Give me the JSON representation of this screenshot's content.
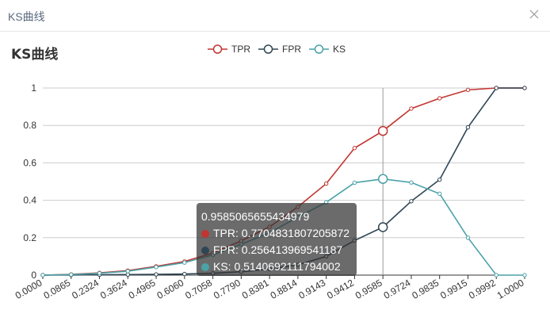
{
  "window": {
    "title": "KS曲线",
    "close_icon": "close-icon"
  },
  "chart_data": {
    "type": "line",
    "title": "KS曲线",
    "x": [
      "0.0000",
      "0.0865",
      "0.2324",
      "0.3624",
      "0.4965",
      "0.6060",
      "0.7058",
      "0.7790",
      "0.8381",
      "0.8814",
      "0.9143",
      "0.9412",
      "0.9585",
      "0.9724",
      "0.9835",
      "0.9915",
      "0.9992",
      "1.0000"
    ],
    "ylim": [
      0,
      1
    ],
    "yticks": [
      "0",
      "0.2",
      "0.4",
      "0.6",
      "0.8",
      "1"
    ],
    "legend_position": "top-center",
    "grid": true,
    "series": [
      {
        "name": "TPR",
        "color": "#c23531",
        "values": [
          0,
          0.004,
          0.012,
          0.024,
          0.047,
          0.073,
          0.118,
          0.183,
          0.258,
          0.365,
          0.489,
          0.679,
          0.7705,
          0.89,
          0.945,
          0.99,
          1.0,
          1.0
        ]
      },
      {
        "name": "FPR",
        "color": "#2f4554",
        "values": [
          0,
          0.001,
          0.002,
          0.003,
          0.004,
          0.006,
          0.01,
          0.018,
          0.032,
          0.055,
          0.1,
          0.185,
          0.2564,
          0.395,
          0.51,
          0.79,
          1.0,
          1.0
        ]
      },
      {
        "name": "KS",
        "color": "#4ba2a8",
        "values": [
          0,
          0.003,
          0.01,
          0.021,
          0.043,
          0.067,
          0.108,
          0.165,
          0.226,
          0.31,
          0.389,
          0.494,
          0.5141,
          0.495,
          0.435,
          0.2,
          0,
          0
        ]
      }
    ],
    "highlight_index": 12
  },
  "tooltip": {
    "header": "0.9585065655434979",
    "rows": [
      {
        "label": "TPR: 0.7704831807205872",
        "color": "#c23531"
      },
      {
        "label": "FPR: 0.256413969541187",
        "color": "#2f4554"
      },
      {
        "label": "KS: 0.5140692111794002",
        "color": "#4ba2a8"
      }
    ]
  }
}
